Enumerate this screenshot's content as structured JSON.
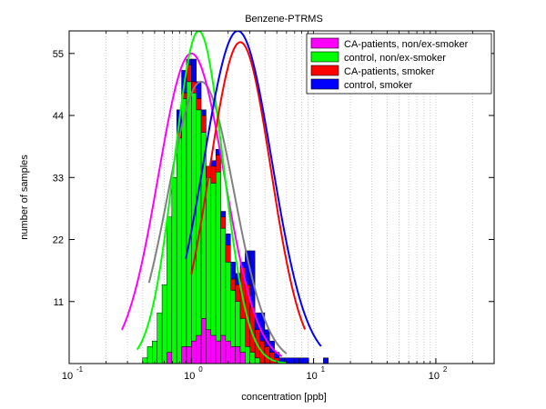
{
  "chart_data": {
    "type": "bar",
    "title": "Benzene-PTRMS",
    "xlabel": "concentration [ppb]",
    "ylabel": "number of samples",
    "xscale": "log",
    "xlim": [
      0.1,
      300
    ],
    "ylim": [
      0,
      59
    ],
    "grid": "x-only-dotted",
    "legend_position": "top-right",
    "xticks": [
      {
        "value": 0.1,
        "base": "10",
        "exp": "-1"
      },
      {
        "value": 1,
        "base": "10",
        "exp": "0"
      },
      {
        "value": 10,
        "base": "10",
        "exp": "1"
      },
      {
        "value": 100,
        "base": "10",
        "exp": "2"
      }
    ],
    "yticks": [
      11,
      22,
      33,
      44,
      55
    ],
    "bin_edges_log10": [
      -1.0,
      0.6,
      0.04
    ],
    "series": [
      {
        "name": "CA-patients, non/ex-smoker",
        "color": "#ff00ff",
        "bins": [
          [
            -0.2,
            2
          ],
          [
            -0.08,
            3
          ],
          [
            -0.04,
            3
          ],
          [
            0.0,
            4
          ],
          [
            0.04,
            5
          ],
          [
            0.08,
            8
          ],
          [
            0.12,
            6
          ],
          [
            0.16,
            5
          ],
          [
            0.2,
            4
          ],
          [
            0.24,
            5
          ],
          [
            0.28,
            4
          ],
          [
            0.32,
            3
          ],
          [
            0.36,
            3
          ],
          [
            0.4,
            2
          ]
        ],
        "fit": {
          "mu_log10": 0.0,
          "sigma_log10": 0.27,
          "peak": 55,
          "x_range": [
            0.27,
            5.5
          ]
        }
      },
      {
        "name": "control, non/ex-smoker",
        "color": "#00ff00",
        "bins": [
          [
            -0.4,
            1
          ],
          [
            -0.36,
            3
          ],
          [
            -0.32,
            4
          ],
          [
            -0.28,
            9
          ],
          [
            -0.24,
            14
          ],
          [
            -0.2,
            24
          ],
          [
            -0.16,
            33
          ],
          [
            -0.12,
            40
          ],
          [
            -0.08,
            44
          ],
          [
            -0.04,
            47
          ],
          [
            0.0,
            44
          ],
          [
            0.04,
            40
          ],
          [
            0.08,
            33
          ],
          [
            0.12,
            27
          ],
          [
            0.16,
            27
          ],
          [
            0.2,
            30
          ],
          [
            0.24,
            19
          ],
          [
            0.28,
            14
          ],
          [
            0.32,
            10
          ],
          [
            0.36,
            8
          ],
          [
            0.4,
            6
          ],
          [
            0.44,
            3
          ],
          [
            0.48,
            2
          ],
          [
            0.52,
            1
          ]
        ],
        "fit": {
          "mu_log10": 0.06,
          "sigma_log10": 0.2,
          "peak": 59,
          "x_range": [
            0.36,
            6.0
          ]
        }
      },
      {
        "name": "CA-patients, smoker",
        "color": "#ff0000",
        "bins": [
          [
            -0.12,
            1
          ],
          [
            -0.08,
            1
          ],
          [
            -0.04,
            3
          ],
          [
            0.0,
            2
          ],
          [
            0.04,
            2
          ],
          [
            0.08,
            3
          ],
          [
            0.12,
            2
          ],
          [
            0.16,
            3
          ],
          [
            0.2,
            3
          ],
          [
            0.24,
            2
          ],
          [
            0.28,
            3
          ],
          [
            0.32,
            2
          ],
          [
            0.36,
            3
          ],
          [
            0.4,
            9
          ],
          [
            0.44,
            11
          ],
          [
            0.48,
            8
          ],
          [
            0.52,
            5
          ],
          [
            0.56,
            4
          ],
          [
            0.6,
            3
          ],
          [
            0.64,
            2
          ],
          [
            0.68,
            1
          ]
        ],
        "fit": {
          "mu_log10": 0.4,
          "sigma_log10": 0.25,
          "peak": 57,
          "x_range": [
            1.0,
            8.5
          ]
        }
      },
      {
        "name": "control, smoker",
        "color": "#0000ff",
        "bins": [
          [
            -0.12,
            4
          ],
          [
            -0.08,
            4
          ],
          [
            -0.04,
            1
          ],
          [
            0.0,
            4
          ],
          [
            0.04,
            3
          ],
          [
            0.08,
            1
          ],
          [
            0.16,
            1
          ],
          [
            0.2,
            1
          ],
          [
            0.24,
            1
          ],
          [
            0.28,
            2
          ],
          [
            0.32,
            3
          ],
          [
            0.36,
            2
          ],
          [
            0.4,
            1
          ],
          [
            0.44,
            6
          ],
          [
            0.48,
            10
          ],
          [
            0.52,
            3
          ],
          [
            0.56,
            5
          ],
          [
            0.6,
            3
          ],
          [
            0.64,
            2
          ],
          [
            0.68,
            1
          ],
          [
            0.72,
            1
          ],
          [
            0.76,
            1
          ],
          [
            0.8,
            1
          ],
          [
            0.84,
            1
          ],
          [
            0.88,
            1
          ],
          [
            0.92,
            1
          ],
          [
            1.08,
            1
          ]
        ],
        "fit": {
          "mu_log10": 0.38,
          "sigma_log10": 0.28,
          "peak": 59,
          "x_range": [
            0.9,
            11.5
          ]
        }
      }
    ],
    "overall_fit": {
      "color": "#808080",
      "mu_log10": 0.08,
      "sigma_log10": 0.27,
      "peak": 50,
      "x_range": [
        0.45,
        6.0
      ]
    }
  }
}
